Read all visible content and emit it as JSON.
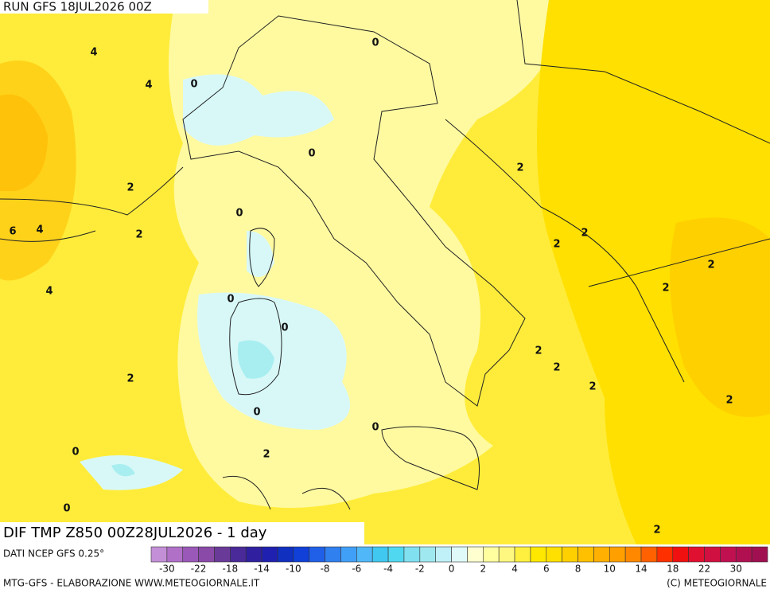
{
  "header": {
    "run": "RUN GFS 18JUL2026 00Z",
    "title": "DIF TMP Z850 00Z28JUL2026 - 1 day",
    "source": "DATI NCEP GFS 0.25°"
  },
  "map": {
    "contour_labels": [
      4,
      4,
      0,
      0,
      0,
      2,
      0,
      2,
      6,
      4,
      4,
      0,
      0,
      2,
      0,
      0,
      0,
      2,
      0,
      2,
      2,
      2,
      2,
      2,
      2,
      2,
      2,
      2,
      2
    ]
  },
  "legend": {
    "ticks": [
      -30,
      -22,
      -18,
      -14,
      -10,
      -8,
      -6,
      -4,
      -2,
      0,
      2,
      4,
      6,
      8,
      10,
      14,
      18,
      22,
      30
    ],
    "colors": [
      "#c38fd6",
      "#b070c8",
      "#9a58b8",
      "#8a4aa8",
      "#6a3a98",
      "#4a2a98",
      "#3020a0",
      "#2020b0",
      "#1030c0",
      "#1040d8",
      "#2060e8",
      "#3080f0",
      "#40a0f8",
      "#50b8f8",
      "#40c8f0",
      "#50d8f0",
      "#80e0f0",
      "#a0e8f0",
      "#c0f0f8",
      "#e0fafa",
      "#ffffd0",
      "#ffffa0",
      "#fff880",
      "#fff040",
      "#ffe800",
      "#ffe000",
      "#ffd000",
      "#ffc000",
      "#ffb000",
      "#ffa000",
      "#ff8800",
      "#ff6000",
      "#ff3000",
      "#f01010",
      "#e01030",
      "#d01040",
      "#c01050",
      "#b01050",
      "#a01050"
    ]
  },
  "footer": {
    "left": "MTG-GFS - ELABORAZIONE WWW.METEOGIORNALE.IT",
    "right": "(C) METEOGIORNALE"
  }
}
